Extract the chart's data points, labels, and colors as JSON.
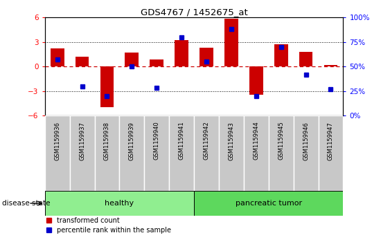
{
  "title": "GDS4767 / 1452675_at",
  "samples": [
    "GSM1159936",
    "GSM1159937",
    "GSM1159938",
    "GSM1159939",
    "GSM1159940",
    "GSM1159941",
    "GSM1159942",
    "GSM1159943",
    "GSM1159944",
    "GSM1159945",
    "GSM1159946",
    "GSM1159947"
  ],
  "bar_values": [
    2.2,
    1.2,
    -5.0,
    1.7,
    0.9,
    3.2,
    2.3,
    5.85,
    -3.5,
    2.7,
    1.8,
    0.15
  ],
  "dot_values": [
    57,
    30,
    20,
    50,
    28,
    80,
    55,
    88,
    20,
    70,
    42,
    27
  ],
  "ylim": [
    -6,
    6
  ],
  "yticks": [
    -6,
    -3,
    0,
    3,
    6
  ],
  "y2lim": [
    0,
    100
  ],
  "y2ticks": [
    0,
    25,
    50,
    75,
    100
  ],
  "bar_color": "#CC0000",
  "dot_color": "#0000CC",
  "zero_line_color": "#CC0000",
  "grid_color": "#000000",
  "sample_bg_color": "#C8C8C8",
  "group_healthy_color": "#90EE90",
  "group_tumor_color": "#5DD85D",
  "legend_bar_label": "transformed count",
  "legend_dot_label": "percentile rank within the sample",
  "disease_state_label": "disease state",
  "bar_width": 0.55,
  "healthy_count": 6,
  "tumor_count": 6
}
